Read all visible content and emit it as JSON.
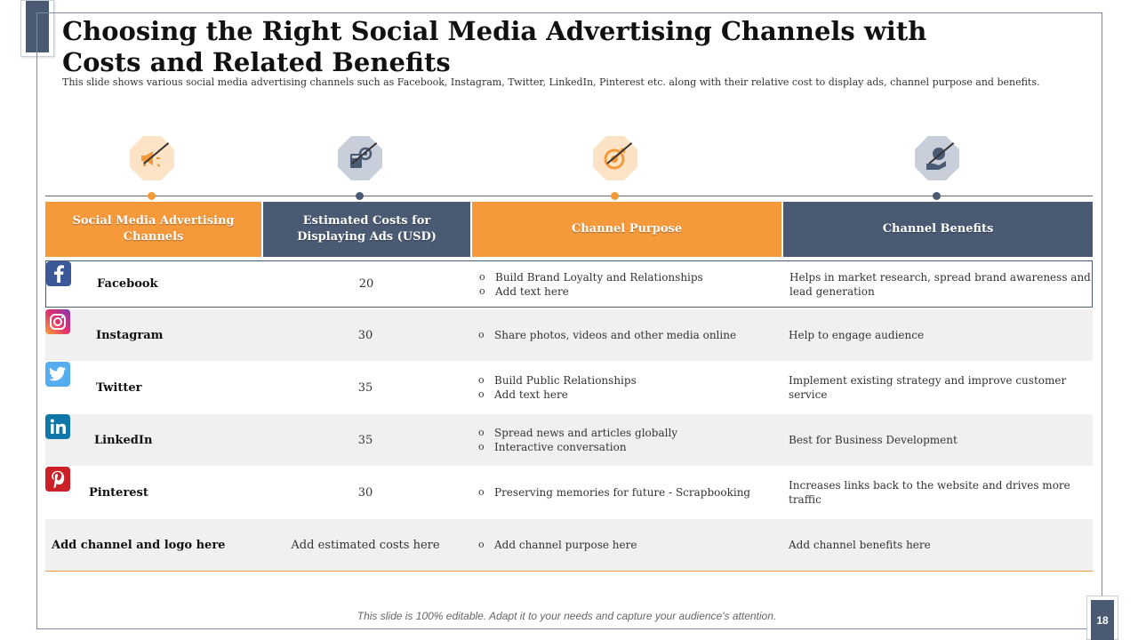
{
  "slide": {
    "title": "Choosing the Right Social Media Advertising Channels with Costs and Related Benefits",
    "subtitle": "This slide shows various social media advertising channels such as Facebook, Instagram,  Twitter,  LinkedIn, Pinterest etc. along with their relative cost to display ads, channel purpose  and benefits.",
    "footer": "This slide is 100% editable. Adapt it to your needs and capture your audience's attention.",
    "page_number": "18"
  },
  "colors": {
    "orange": "#f5993a",
    "slate": "#4a5a72"
  },
  "header_icons": [
    "megaphone-icon",
    "calculator-gear-icon",
    "target-icon",
    "money-hand-icon"
  ],
  "table": {
    "headers": [
      "Social Media Advertising Channels",
      "Estimated Costs for Displaying Ads (USD)",
      "Channel Purpose",
      "Channel Benefits"
    ],
    "rows": [
      {
        "channel": "Facebook",
        "logo": "facebook-icon",
        "cost": "20",
        "purpose": [
          "Build Brand Loyalty and Relationships",
          "Add text here"
        ],
        "benefit": "Helps in market  research,  spread brand  awareness  and lead generation"
      },
      {
        "channel": "Instagram",
        "logo": "instagram-icon",
        "cost": "30",
        "purpose": [
          "Share photos, videos and other media online"
        ],
        "benefit": "Help to engage  audience"
      },
      {
        "channel": "Twitter",
        "logo": "twitter-icon",
        "cost": "35",
        "purpose": [
          "Build Public Relationships",
          "Add text here"
        ],
        "benefit": "Implement  existing strategy  and improve customer service"
      },
      {
        "channel": "LinkedIn",
        "logo": "linkedin-icon",
        "cost": "35",
        "purpose": [
          "Spread  news and articles globally",
          "Interactive  conversation"
        ],
        "benefit": "Best for Business Development"
      },
      {
        "channel": "Pinterest",
        "logo": "pinterest-icon",
        "cost": "30",
        "purpose": [
          "Preserving  memories for future - Scrapbooking"
        ],
        "benefit": "Increases  links back to the website and drives more traffic"
      },
      {
        "channel": "Add channel and logo here",
        "logo": "",
        "cost": "Add estimated costs here",
        "purpose": [
          "Add channel purpose here"
        ],
        "benefit": "Add channel  benefits here"
      }
    ]
  }
}
